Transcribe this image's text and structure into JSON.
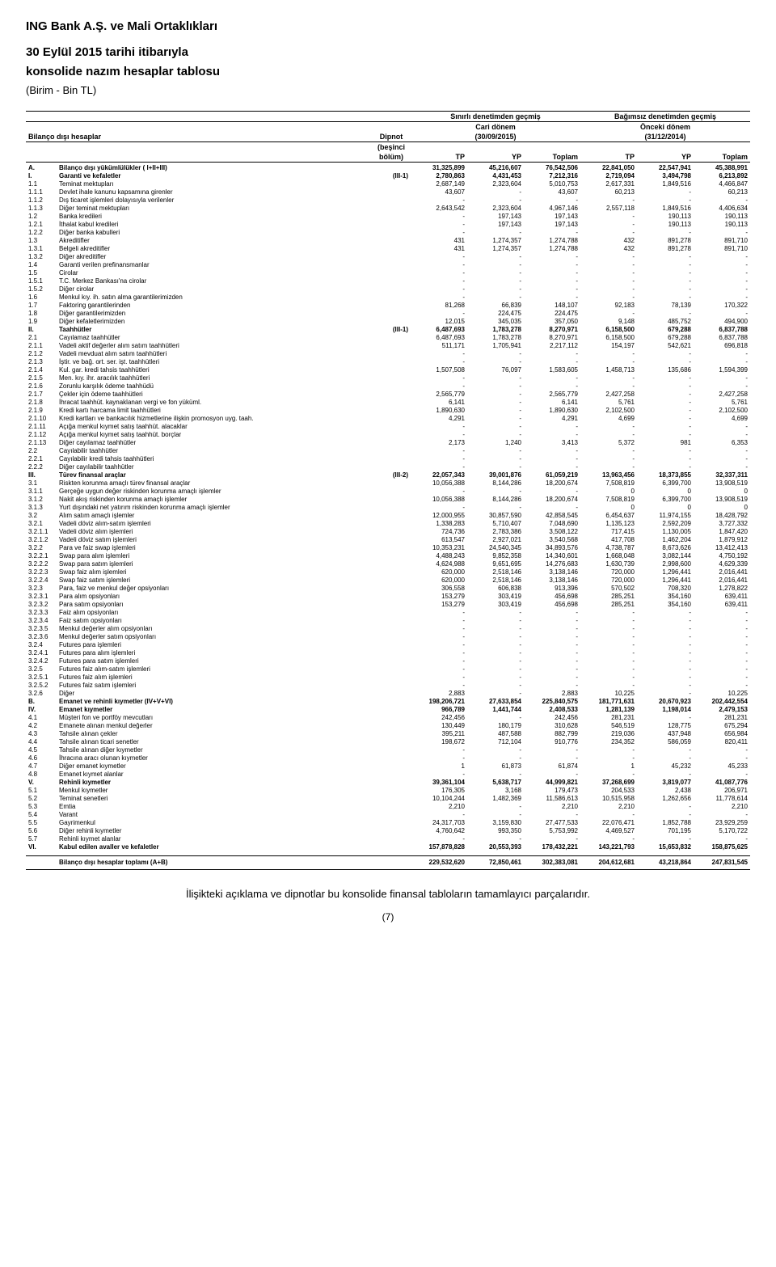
{
  "company": "ING Bank A.Ş. ve Mali Ortaklıkları",
  "title_line1": "30 Eylül 2015 tarihi itibarıyla",
  "title_line2": "konsolide nazım hesaplar tablosu",
  "unit": "(Birim - Bin TL)",
  "header": {
    "group_left": "Sınırlı denetimden geçmiş",
    "group_right": "Bağımsız denetimden geçmiş",
    "period_left_label": "Cari dönem",
    "period_right_label": "Önceki dönem",
    "bilanco_label": "Bilanço dışı hesaplar",
    "dipnot_label": "Dipnot",
    "period_left": "(30/09/2015)",
    "period_right": "(31/12/2014)",
    "besinci": "(beşinci",
    "bolum": "bölüm)",
    "tp": "TP",
    "yp": "YP",
    "toplam": "Toplam"
  },
  "rows": [
    {
      "c": "A.",
      "l": "Bilanço dışı yükümlülükler ( I+II+III)",
      "d": "",
      "b": true,
      "v": [
        "31,325,899",
        "45,216,607",
        "76,542,506",
        "22,841,050",
        "22,547,941",
        "45,388,991"
      ]
    },
    {
      "c": "I.",
      "l": "Garanti ve kefaletler",
      "d": "(III-1)",
      "b": true,
      "v": [
        "2,780,863",
        "4,431,453",
        "7,212,316",
        "2,719,094",
        "3,494,798",
        "6,213,892"
      ]
    },
    {
      "c": "1.1",
      "l": "Teminat mektupları",
      "d": "",
      "v": [
        "2,687,149",
        "2,323,604",
        "5,010,753",
        "2,617,331",
        "1,849,516",
        "4,466,847"
      ]
    },
    {
      "c": "1.1.1",
      "l": "Devlet ihale kanunu kapsamına girenler",
      "d": "",
      "v": [
        "43,607",
        "-",
        "43,607",
        "60,213",
        "-",
        "60,213"
      ]
    },
    {
      "c": "1.1.2",
      "l": "Dış ticaret işlemleri dolayısıyla verilenler",
      "d": "",
      "v": [
        "-",
        "-",
        "-",
        "-",
        "-",
        "-"
      ]
    },
    {
      "c": "1.1.3",
      "l": "Diğer teminat mektupları",
      "d": "",
      "v": [
        "2,643,542",
        "2,323,604",
        "4,967,146",
        "2,557,118",
        "1,849,516",
        "4,406,634"
      ]
    },
    {
      "c": "1.2",
      "l": "Banka kredileri",
      "d": "",
      "v": [
        "-",
        "197,143",
        "197,143",
        "-",
        "190,113",
        "190,113"
      ]
    },
    {
      "c": "1.2.1",
      "l": "İthalat kabul kredileri",
      "d": "",
      "v": [
        "-",
        "197,143",
        "197,143",
        "-",
        "190,113",
        "190,113"
      ]
    },
    {
      "c": "1.2.2",
      "l": "Diğer banka kabulleri",
      "d": "",
      "v": [
        "-",
        "-",
        "-",
        "-",
        "-",
        "-"
      ]
    },
    {
      "c": "1.3",
      "l": "Akreditifler",
      "d": "",
      "v": [
        "431",
        "1,274,357",
        "1,274,788",
        "432",
        "891,278",
        "891,710"
      ]
    },
    {
      "c": "1.3.1",
      "l": "Belgeli akreditifler",
      "d": "",
      "v": [
        "431",
        "1,274,357",
        "1,274,788",
        "432",
        "891,278",
        "891,710"
      ]
    },
    {
      "c": "1.3.2",
      "l": "Diğer akreditifler",
      "d": "",
      "v": [
        "-",
        "-",
        "-",
        "-",
        "-",
        "-"
      ]
    },
    {
      "c": "1.4",
      "l": "Garanti verilen prefinansmanlar",
      "d": "",
      "v": [
        "-",
        "-",
        "-",
        "-",
        "-",
        "-"
      ]
    },
    {
      "c": "1.5",
      "l": "Cirolar",
      "d": "",
      "v": [
        "-",
        "-",
        "-",
        "-",
        "-",
        "-"
      ]
    },
    {
      "c": "1.5.1",
      "l": "T.C. Merkez Bankası'na cirolar",
      "d": "",
      "v": [
        "-",
        "-",
        "-",
        "-",
        "-",
        "-"
      ]
    },
    {
      "c": "1.5.2",
      "l": "Diğer cirolar",
      "d": "",
      "v": [
        "-",
        "-",
        "-",
        "-",
        "-",
        "-"
      ]
    },
    {
      "c": "1.6",
      "l": "Menkul kıy. ih. satın alma garantilerimizden",
      "d": "",
      "v": [
        "-",
        "-",
        "-",
        "-",
        "-",
        "-"
      ]
    },
    {
      "c": "1.7",
      "l": "Faktoring garantilerinden",
      "d": "",
      "v": [
        "81,268",
        "66,839",
        "148,107",
        "92,183",
        "78,139",
        "170,322"
      ]
    },
    {
      "c": "1.8",
      "l": "Diğer garantilerimizden",
      "d": "",
      "v": [
        "-",
        "224,475",
        "224,475",
        "-",
        "-",
        "-"
      ]
    },
    {
      "c": "1.9",
      "l": "Diğer kefaletlerimizden",
      "d": "",
      "v": [
        "12,015",
        "345,035",
        "357,050",
        "9,148",
        "485,752",
        "494,900"
      ]
    },
    {
      "c": "II.",
      "l": "Taahhütler",
      "d": "(III-1)",
      "b": true,
      "v": [
        "6,487,693",
        "1,783,278",
        "8,270,971",
        "6,158,500",
        "679,288",
        "6,837,788"
      ]
    },
    {
      "c": "2.1",
      "l": "Cayılamaz taahhütler",
      "d": "",
      "v": [
        "6,487,693",
        "1,783,278",
        "8,270,971",
        "6,158,500",
        "679,288",
        "6,837,788"
      ]
    },
    {
      "c": "2.1.1",
      "l": "Vadeli aktif değerler alım satım taahhütleri",
      "d": "",
      "v": [
        "511,171",
        "1,705,941",
        "2,217,112",
        "154,197",
        "542,621",
        "696,818"
      ]
    },
    {
      "c": "2.1.2",
      "l": "Vadeli mevduat alım satım taahhütleri",
      "d": "",
      "v": [
        "-",
        "-",
        "-",
        "-",
        "-",
        "-"
      ]
    },
    {
      "c": "2.1.3",
      "l": "İştir. ve bağ. ort. ser. işt. taahhütleri",
      "d": "",
      "v": [
        "-",
        "-",
        "-",
        "-",
        "-",
        "-"
      ]
    },
    {
      "c": "2.1.4",
      "l": "Kul. gar. kredi tahsis taahhütleri",
      "d": "",
      "v": [
        "1,507,508",
        "76,097",
        "1,583,605",
        "1,458,713",
        "135,686",
        "1,594,399"
      ]
    },
    {
      "c": "2.1.5",
      "l": "Men. kıy. ihr. aracılık taahhütleri",
      "d": "",
      "v": [
        "-",
        "-",
        "-",
        "-",
        "-",
        "-"
      ]
    },
    {
      "c": "2.1.6",
      "l": "Zorunlu karşılık ödeme taahhüdü",
      "d": "",
      "v": [
        "-",
        "-",
        "-",
        "-",
        "-",
        "-"
      ]
    },
    {
      "c": "2.1.7",
      "l": "Çekler için ödeme taahhütleri",
      "d": "",
      "v": [
        "2,565,779",
        "-",
        "2,565,779",
        "2,427,258",
        "-",
        "2,427,258"
      ]
    },
    {
      "c": "2.1.8",
      "l": "İhracat taahhüt. kaynaklanan vergi ve fon yüküml.",
      "d": "",
      "v": [
        "6,141",
        "-",
        "6,141",
        "5,761",
        "-",
        "5,761"
      ]
    },
    {
      "c": "2.1.9",
      "l": "Kredi kartı harcama limit taahhütleri",
      "d": "",
      "v": [
        "1,890,630",
        "-",
        "1,890,630",
        "2,102,500",
        "-",
        "2,102,500"
      ]
    },
    {
      "c": "2.1.10",
      "l": "Kredi kartları ve bankacılık hizmetlerine ilişkin promosyon uyg. taah.",
      "d": "",
      "v": [
        "4,291",
        "-",
        "4,291",
        "4,699",
        "-",
        "4,699"
      ]
    },
    {
      "c": "2.1.11",
      "l": "Açığa menkul kıymet satış taahhüt. alacaklar",
      "d": "",
      "v": [
        "-",
        "-",
        "-",
        "-",
        "-",
        "-"
      ]
    },
    {
      "c": "2.1.12",
      "l": "Açığa menkul kıymet satış taahhüt. borçlar",
      "d": "",
      "v": [
        "-",
        "-",
        "-",
        "-",
        "-",
        "-"
      ]
    },
    {
      "c": "2.1.13",
      "l": "Diğer cayılamaz taahhütler",
      "d": "",
      "v": [
        "2,173",
        "1,240",
        "3,413",
        "5,372",
        "981",
        "6,353"
      ]
    },
    {
      "c": "2.2",
      "l": "Cayılabilir taahhütler",
      "d": "",
      "v": [
        "-",
        "-",
        "-",
        "-",
        "-",
        "-"
      ]
    },
    {
      "c": "2.2.1",
      "l": "Cayılabilir kredi tahsis taahhütleri",
      "d": "",
      "v": [
        "-",
        "-",
        "-",
        "-",
        "-",
        "-"
      ]
    },
    {
      "c": "2.2.2",
      "l": "Diğer cayılabilir taahhütler",
      "d": "",
      "v": [
        "-",
        "-",
        "-",
        "-",
        "-",
        "-"
      ]
    },
    {
      "c": "III.",
      "l": "Türev finansal araçlar",
      "d": "(III-2)",
      "b": true,
      "v": [
        "22,057,343",
        "39,001,876",
        "61,059,219",
        "13,963,456",
        "18,373,855",
        "32,337,311"
      ]
    },
    {
      "c": "3.1",
      "l": "Riskten korunma amaçlı türev finansal araçlar",
      "d": "",
      "v": [
        "10,056,388",
        "8,144,286",
        "18,200,674",
        "7,508,819",
        "6,399,700",
        "13,908,519"
      ]
    },
    {
      "c": "3.1.1",
      "l": "Gerçeğe uygun değer riskinden korunma amaçlı işlemler",
      "d": "",
      "v": [
        "-",
        "-",
        "-",
        "0",
        "0",
        "0"
      ]
    },
    {
      "c": "3.1.2",
      "l": "Nakit akış riskinden korunma amaçlı işlemler",
      "d": "",
      "v": [
        "10,056,388",
        "8,144,286",
        "18,200,674",
        "7,508,819",
        "6,399,700",
        "13,908,519"
      ]
    },
    {
      "c": "3.1.3",
      "l": "Yurt dışındaki net yatırım riskinden korunma amaçlı işlemler",
      "d": "",
      "v": [
        "-",
        "-",
        "-",
        "0",
        "0",
        "0"
      ]
    },
    {
      "c": "3.2",
      "l": "Alım satım amaçlı işlemler",
      "d": "",
      "v": [
        "12,000,955",
        "30,857,590",
        "42,858,545",
        "6,454,637",
        "11,974,155",
        "18,428,792"
      ]
    },
    {
      "c": "3.2.1",
      "l": "Vadeli döviz alım-satım işlemleri",
      "d": "",
      "v": [
        "1,338,283",
        "5,710,407",
        "7,048,690",
        "1,135,123",
        "2,592,209",
        "3,727,332"
      ]
    },
    {
      "c": "3.2.1.1",
      "l": "Vadeli döviz alım işlemleri",
      "d": "",
      "v": [
        "724,736",
        "2,783,386",
        "3,508,122",
        "717,415",
        "1,130,005",
        "1,847,420"
      ]
    },
    {
      "c": "3.2.1.2",
      "l": "Vadeli döviz satım işlemleri",
      "d": "",
      "v": [
        "613,547",
        "2,927,021",
        "3,540,568",
        "417,708",
        "1,462,204",
        "1,879,912"
      ]
    },
    {
      "c": "3.2.2",
      "l": "Para ve faiz swap işlemleri",
      "d": "",
      "v": [
        "10,353,231",
        "24,540,345",
        "34,893,576",
        "4,738,787",
        "8,673,626",
        "13,412,413"
      ]
    },
    {
      "c": "3.2.2.1",
      "l": "Swap para alım işlemleri",
      "d": "",
      "v": [
        "4,488,243",
        "9,852,358",
        "14,340,601",
        "1,668,048",
        "3,082,144",
        "4,750,192"
      ]
    },
    {
      "c": "3.2.2.2",
      "l": "Swap para satım işlemleri",
      "d": "",
      "v": [
        "4,624,988",
        "9,651,695",
        "14,276,683",
        "1,630,739",
        "2,998,600",
        "4,629,339"
      ]
    },
    {
      "c": "3.2.2.3",
      "l": "Swap faiz alım işlemleri",
      "d": "",
      "v": [
        "620,000",
        "2,518,146",
        "3,138,146",
        "720,000",
        "1,296,441",
        "2,016,441"
      ]
    },
    {
      "c": "3.2.2.4",
      "l": "Swap faiz satım işlemleri",
      "d": "",
      "v": [
        "620,000",
        "2,518,146",
        "3,138,146",
        "720,000",
        "1,296,441",
        "2,016,441"
      ]
    },
    {
      "c": "3.2.3",
      "l": "Para, faiz ve menkul değer opsiyonları",
      "d": "",
      "v": [
        "306,558",
        "606,838",
        "913,396",
        "570,502",
        "708,320",
        "1,278,822"
      ]
    },
    {
      "c": "3.2.3.1",
      "l": "Para alım opsiyonları",
      "d": "",
      "v": [
        "153,279",
        "303,419",
        "456,698",
        "285,251",
        "354,160",
        "639,411"
      ]
    },
    {
      "c": "3.2.3.2",
      "l": "Para satım opsiyonları",
      "d": "",
      "v": [
        "153,279",
        "303,419",
        "456,698",
        "285,251",
        "354,160",
        "639,411"
      ]
    },
    {
      "c": "3.2.3.3",
      "l": "Faiz alım opsiyonları",
      "d": "",
      "v": [
        "-",
        "-",
        "-",
        "-",
        "-",
        "-"
      ]
    },
    {
      "c": "3.2.3.4",
      "l": "Faiz satım opsiyonları",
      "d": "",
      "v": [
        "-",
        "-",
        "-",
        "-",
        "-",
        "-"
      ]
    },
    {
      "c": "3.2.3.5",
      "l": "Menkul değerler alım opsiyonları",
      "d": "",
      "v": [
        "-",
        "-",
        "-",
        "-",
        "-",
        "-"
      ]
    },
    {
      "c": "3.2.3.6",
      "l": "Menkul değerler satım opsiyonları",
      "d": "",
      "v": [
        "-",
        "-",
        "-",
        "-",
        "-",
        "-"
      ]
    },
    {
      "c": "3.2.4",
      "l": "Futures para işlemleri",
      "d": "",
      "v": [
        "-",
        "-",
        "-",
        "-",
        "-",
        "-"
      ]
    },
    {
      "c": "3.2.4.1",
      "l": "Futures para alım işlemleri",
      "d": "",
      "v": [
        "-",
        "-",
        "-",
        "-",
        "-",
        "-"
      ]
    },
    {
      "c": "3.2.4.2",
      "l": "Futures para satım işlemleri",
      "d": "",
      "v": [
        "-",
        "-",
        "-",
        "-",
        "-",
        "-"
      ]
    },
    {
      "c": "3.2.5",
      "l": "Futures faiz alım-satım işlemleri",
      "d": "",
      "v": [
        "-",
        "-",
        "-",
        "-",
        "-",
        "-"
      ]
    },
    {
      "c": "3.2.5.1",
      "l": "Futures faiz alım işlemleri",
      "d": "",
      "v": [
        "-",
        "-",
        "-",
        "-",
        "-",
        "-"
      ]
    },
    {
      "c": "3.2.5.2",
      "l": "Futures faiz satım işlemleri",
      "d": "",
      "v": [
        "-",
        "-",
        "-",
        "-",
        "-",
        "-"
      ]
    },
    {
      "c": "3.2.6",
      "l": "Diğer",
      "d": "",
      "v": [
        "2,883",
        "-",
        "2,883",
        "10,225",
        "-",
        "10,225"
      ]
    },
    {
      "c": "B.",
      "l": "Emanet ve rehinli kıymetler (IV+V+VI)",
      "d": "",
      "b": true,
      "v": [
        "198,206,721",
        "27,633,854",
        "225,840,575",
        "181,771,631",
        "20,670,923",
        "202,442,554"
      ]
    },
    {
      "c": "IV.",
      "l": "Emanet kıymetler",
      "d": "",
      "b": true,
      "v": [
        "966,789",
        "1,441,744",
        "2,408,533",
        "1,281,139",
        "1,198,014",
        "2,479,153"
      ]
    },
    {
      "c": "4.1",
      "l": "Müşteri fon ve portföy mevcutları",
      "d": "",
      "v": [
        "242,456",
        "-",
        "242,456",
        "281,231",
        "-",
        "281,231"
      ]
    },
    {
      "c": "4.2",
      "l": "Emanete alınan menkul değerler",
      "d": "",
      "v": [
        "130,449",
        "180,179",
        "310,628",
        "546,519",
        "128,775",
        "675,294"
      ]
    },
    {
      "c": "4.3",
      "l": "Tahsile alınan çekler",
      "d": "",
      "v": [
        "395,211",
        "487,588",
        "882,799",
        "219,036",
        "437,948",
        "656,984"
      ]
    },
    {
      "c": "4.4",
      "l": "Tahsile alınan ticari senetler",
      "d": "",
      "v": [
        "198,672",
        "712,104",
        "910,776",
        "234,352",
        "586,059",
        "820,411"
      ]
    },
    {
      "c": "4.5",
      "l": "Tahsile alınan diğer kıymetler",
      "d": "",
      "v": [
        "-",
        "-",
        "-",
        "-",
        "-",
        "-"
      ]
    },
    {
      "c": "4.6",
      "l": "İhracına aracı olunan kıymetler",
      "d": "",
      "v": [
        "-",
        "-",
        "-",
        "-",
        "-",
        "-"
      ]
    },
    {
      "c": "4.7",
      "l": "Diğer emanet kıymetler",
      "d": "",
      "v": [
        "1",
        "61,873",
        "61,874",
        "1",
        "45,232",
        "45,233"
      ]
    },
    {
      "c": "4.8",
      "l": "Emanet kıymet alanlar",
      "d": "",
      "v": [
        "-",
        "-",
        "-",
        "-",
        "-",
        "-"
      ]
    },
    {
      "c": "V.",
      "l": "Rehinli kıymetler",
      "d": "",
      "b": true,
      "v": [
        "39,361,104",
        "5,638,717",
        "44,999,821",
        "37,268,699",
        "3,819,077",
        "41,087,776"
      ]
    },
    {
      "c": "5.1",
      "l": "Menkul kıymetler",
      "d": "",
      "v": [
        "176,305",
        "3,168",
        "179,473",
        "204,533",
        "2,438",
        "206,971"
      ]
    },
    {
      "c": "5.2",
      "l": "Teminat senetleri",
      "d": "",
      "v": [
        "10,104,244",
        "1,482,369",
        "11,586,613",
        "10,515,958",
        "1,262,656",
        "11,778,614"
      ]
    },
    {
      "c": "5.3",
      "l": "Emtia",
      "d": "",
      "v": [
        "2,210",
        "-",
        "2,210",
        "2,210",
        "-",
        "2,210"
      ]
    },
    {
      "c": "5.4",
      "l": "Varant",
      "d": "",
      "v": [
        "-",
        "-",
        "-",
        "-",
        "-",
        "-"
      ]
    },
    {
      "c": "5.5",
      "l": "Gayrimenkul",
      "d": "",
      "v": [
        "24,317,703",
        "3,159,830",
        "27,477,533",
        "22,076,471",
        "1,852,788",
        "23,929,259"
      ]
    },
    {
      "c": "5.6",
      "l": "Diğer rehinli kıymetler",
      "d": "",
      "v": [
        "4,760,642",
        "993,350",
        "5,753,992",
        "4,469,527",
        "701,195",
        "5,170,722"
      ]
    },
    {
      "c": "5.7",
      "l": "Rehinli kıymet alanlar",
      "d": "",
      "v": [
        "-",
        "-",
        "-",
        "-",
        "-",
        "-"
      ]
    },
    {
      "c": "VI.",
      "l": "Kabul edilen avaller ve kefaletler",
      "d": "",
      "b": true,
      "v": [
        "157,878,828",
        "20,553,393",
        "178,432,221",
        "143,221,793",
        "15,653,832",
        "158,875,625"
      ]
    }
  ],
  "total_row": {
    "label": "Bilanço dışı hesaplar toplamı (A+B)",
    "v": [
      "229,532,620",
      "72,850,461",
      "302,383,081",
      "204,612,681",
      "43,218,864",
      "247,831,545"
    ]
  },
  "footer_note": "İlişikteki açıklama ve dipnotlar bu konsolide finansal tabloların tamamlayıcı parçalarıdır.",
  "page_num": "(7)"
}
